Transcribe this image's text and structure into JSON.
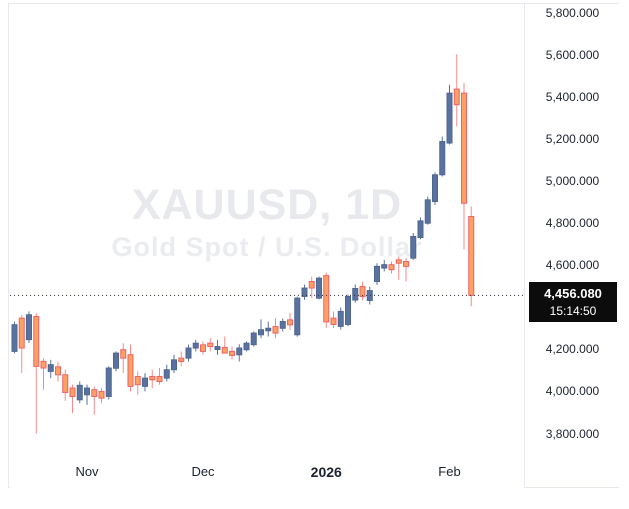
{
  "watermark": {
    "line1": "XAUUSD, 1D",
    "line2": "Gold Spot / U.S. Dollar"
  },
  "price_axis": {
    "ticks": [
      {
        "value": 5800,
        "label": "5,800.000"
      },
      {
        "value": 5600,
        "label": "5,600.000"
      },
      {
        "value": 5400,
        "label": "5,400.000"
      },
      {
        "value": 5200,
        "label": "5,200.000"
      },
      {
        "value": 5000,
        "label": "5,000.000"
      },
      {
        "value": 4800,
        "label": "4,800.000"
      },
      {
        "value": 4600,
        "label": "4,600.000"
      },
      {
        "value": 4200,
        "label": "4,200.000"
      },
      {
        "value": 4000,
        "label": "4,000.000"
      },
      {
        "value": 3800,
        "label": "3,800.000"
      }
    ],
    "last_price": {
      "value": 4456.08,
      "label": "4,456.080",
      "time": "15:14:50"
    }
  },
  "time_axis": {
    "labels": [
      {
        "label": "Nov",
        "index": 10,
        "bold": false
      },
      {
        "label": "Dec",
        "index": 26,
        "bold": false
      },
      {
        "label": "2026",
        "index": 43,
        "bold": true
      },
      {
        "label": "Feb",
        "index": 60,
        "bold": false
      }
    ]
  },
  "colors": {
    "up": "#5a72a0",
    "up_border": "#4f678f",
    "down_fill": "#fca164",
    "down_border": "#ef6266",
    "down_wick": "#f48a8a",
    "price_line": "#2a2e39",
    "axis_text": "#1d2230",
    "price_box_bg": "#0c0c0c",
    "price_box_text": "#ffffff"
  },
  "chart_data": {
    "type": "candlestick",
    "symbol": "XAUUSD",
    "interval": "1D",
    "description": "Gold Spot / U.S. Dollar",
    "title": "XAUUSD, 1D — Gold Spot / U.S. Dollar",
    "ylim": [
      3800,
      5800
    ],
    "grid": false,
    "last_price": 4456.08,
    "last_time": "15:14:50",
    "x_month_marks": [
      "Nov",
      "Dec",
      "2026",
      "Feb"
    ],
    "candles_format": [
      "open",
      "high",
      "low",
      "close"
    ],
    "candles": [
      [
        4190,
        4332,
        4182,
        4317
      ],
      [
        4348,
        4364,
        4087,
        4206
      ],
      [
        4246,
        4380,
        4230,
        4364
      ],
      [
        4356,
        4372,
        3800,
        4119
      ],
      [
        4143,
        4158,
        4008,
        4111
      ],
      [
        4095,
        4150,
        4063,
        4127
      ],
      [
        4117,
        4142,
        4047,
        4079
      ],
      [
        4079,
        4103,
        3955,
        3995
      ],
      [
        4016,
        4032,
        3897,
        3976
      ],
      [
        3960,
        4047,
        3944,
        4029
      ],
      [
        3984,
        4032,
        3936,
        4016
      ],
      [
        4008,
        4024,
        3889,
        3976
      ],
      [
        4000,
        4016,
        3944,
        3968
      ],
      [
        3976,
        4119,
        3961,
        4111
      ],
      [
        4110,
        4190,
        4095,
        4182
      ],
      [
        4198,
        4229,
        4087,
        4158
      ],
      [
        4174,
        4222,
        4000,
        4024
      ],
      [
        4071,
        4095,
        3984,
        4032
      ],
      [
        4024,
        4087,
        4000,
        4063
      ],
      [
        4071,
        4103,
        4016,
        4055
      ],
      [
        4071,
        4111,
        4032,
        4047
      ],
      [
        4063,
        4127,
        4047,
        4103
      ],
      [
        4103,
        4174,
        4087,
        4150
      ],
      [
        4158,
        4190,
        4119,
        4142
      ],
      [
        4158,
        4222,
        4142,
        4206
      ],
      [
        4206,
        4245,
        4190,
        4229
      ],
      [
        4221,
        4237,
        4174,
        4190
      ],
      [
        4229,
        4253,
        4190,
        4213
      ],
      [
        4199,
        4245,
        4174,
        4213
      ],
      [
        4209,
        4261,
        4180,
        4182
      ],
      [
        4190,
        4213,
        4152,
        4171
      ],
      [
        4174,
        4224,
        4142,
        4206
      ],
      [
        4198,
        4237,
        4190,
        4229
      ],
      [
        4222,
        4285,
        4213,
        4277
      ],
      [
        4269,
        4342,
        4253,
        4293
      ],
      [
        4288,
        4332,
        4261,
        4300
      ],
      [
        4308,
        4348,
        4253,
        4277
      ],
      [
        4300,
        4347,
        4285,
        4332
      ],
      [
        4340,
        4372,
        4292,
        4316
      ],
      [
        4269,
        4450,
        4260,
        4443
      ],
      [
        4451,
        4507,
        4435,
        4491
      ],
      [
        4522,
        4546,
        4443,
        4491
      ],
      [
        4443,
        4546,
        4437,
        4538
      ],
      [
        4550,
        4565,
        4301,
        4330
      ],
      [
        4348,
        4380,
        4301,
        4318
      ],
      [
        4309,
        4399,
        4294,
        4380
      ],
      [
        4318,
        4460,
        4309,
        4451
      ],
      [
        4434,
        4508,
        4422,
        4489
      ],
      [
        4498,
        4522,
        4432,
        4451
      ],
      [
        4432,
        4498,
        4413,
        4479
      ],
      [
        4522,
        4609,
        4506,
        4594
      ],
      [
        4586,
        4625,
        4570,
        4602
      ],
      [
        4602,
        4617,
        4560,
        4578
      ],
      [
        4625,
        4641,
        4530,
        4609
      ],
      [
        4617,
        4633,
        4522,
        4594
      ],
      [
        4633,
        4752,
        4625,
        4736
      ],
      [
        4731,
        4826,
        4723,
        4810
      ],
      [
        4799,
        4926,
        4792,
        4910
      ],
      [
        4902,
        5040,
        4886,
        5029
      ],
      [
        5029,
        5211,
        5021,
        5187
      ],
      [
        5180,
        5457,
        5173,
        5417
      ],
      [
        5436,
        5602,
        5259,
        5362
      ],
      [
        5417,
        5465,
        4674,
        4894
      ],
      [
        4831,
        4879,
        4404,
        4456.08
      ]
    ]
  }
}
